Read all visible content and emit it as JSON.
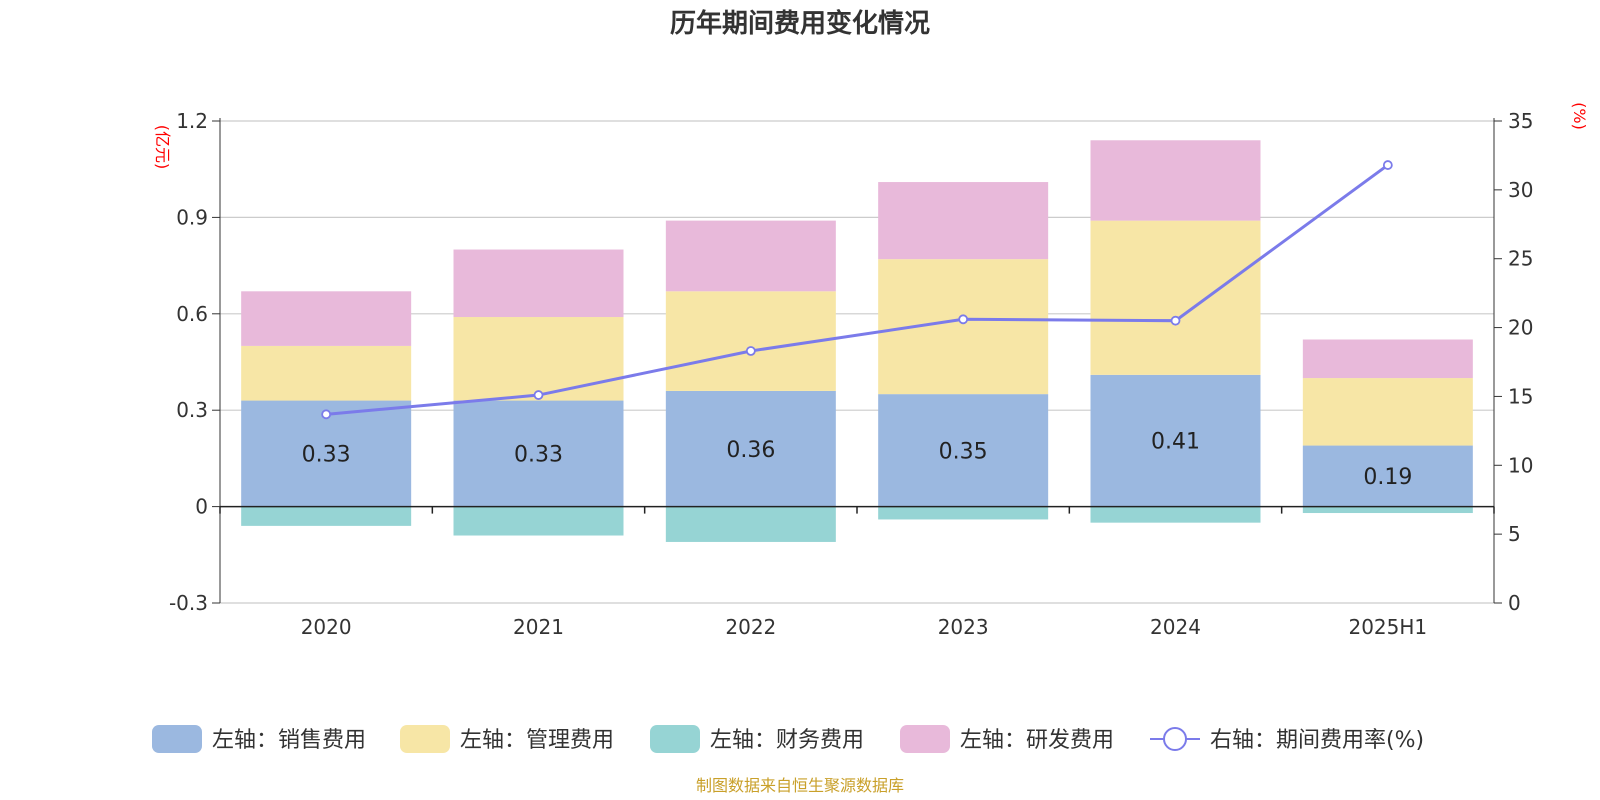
{
  "chart_data": {
    "type": "bar",
    "title": "历年期间费用变化情况",
    "categories": [
      "2020",
      "2021",
      "2022",
      "2023",
      "2024",
      "2025H1"
    ],
    "left_axis": {
      "unit": "(亿元)",
      "ylim": [
        -0.3,
        1.2
      ],
      "ticks": [
        "1.2",
        "0.9",
        "0.6",
        "0.3",
        "0",
        "-0.3"
      ]
    },
    "right_axis": {
      "unit": "(%)",
      "ylim": [
        0,
        35
      ],
      "ticks": [
        "35",
        "30",
        "25",
        "20",
        "15",
        "10",
        "5",
        "0"
      ]
    },
    "series": [
      {
        "name": "左轴：销售费用",
        "axis": "left",
        "kind": "bar",
        "color": "#9bb8e0",
        "values": [
          0.33,
          0.33,
          0.36,
          0.35,
          0.41,
          0.19
        ],
        "labels": [
          "0.33",
          "0.33",
          "0.36",
          "0.35",
          "0.41",
          "0.19"
        ]
      },
      {
        "name": "左轴：管理费用",
        "axis": "left",
        "kind": "bar",
        "color": "#f7e6a6",
        "values": [
          0.17,
          0.26,
          0.31,
          0.42,
          0.48,
          0.21
        ]
      },
      {
        "name": "左轴：财务费用",
        "axis": "left",
        "kind": "bar",
        "color": "#96d4d4",
        "values": [
          -0.06,
          -0.09,
          -0.11,
          -0.04,
          -0.05,
          -0.02
        ]
      },
      {
        "name": "左轴：研发费用",
        "axis": "left",
        "kind": "bar",
        "color": "#e8b9da",
        "values": [
          0.17,
          0.21,
          0.22,
          0.24,
          0.25,
          0.12
        ]
      },
      {
        "name": "右轴：期间费用率(%)",
        "axis": "right",
        "kind": "line",
        "color": "#7b7bea",
        "values": [
          13.7,
          15.1,
          18.3,
          20.6,
          20.5,
          31.8
        ]
      }
    ],
    "grid": true,
    "legend_position": "bottom",
    "source": "制图数据来自恒生聚源数据库"
  }
}
